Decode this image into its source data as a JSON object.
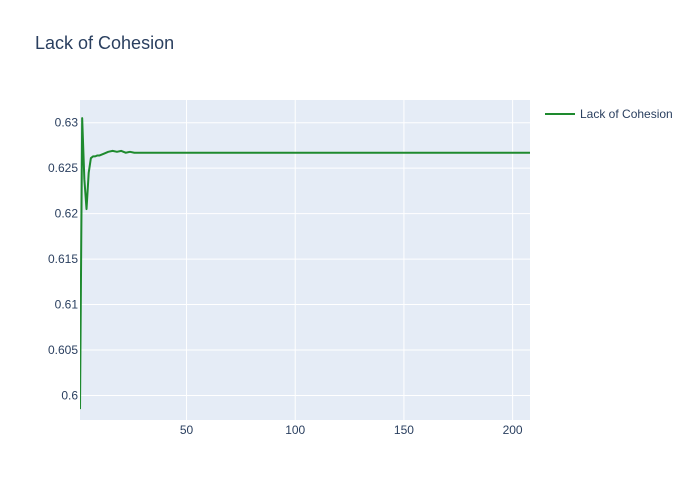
{
  "chart_data": {
    "type": "line",
    "title": "Lack of Cohesion",
    "xlabel": "",
    "ylabel": "",
    "xlim": [
      1,
      208
    ],
    "ylim": [
      0.5973,
      0.6325
    ],
    "xticks": [
      50,
      100,
      150,
      200
    ],
    "yticks": [
      0.6,
      0.605,
      0.61,
      0.615,
      0.62,
      0.625,
      0.63
    ],
    "x_tick_labels": [
      "50",
      "100",
      "150",
      "200"
    ],
    "y_tick_labels": [
      "0.6",
      "0.605",
      "0.61",
      "0.615",
      "0.62",
      "0.625",
      "0.63"
    ],
    "grid": true,
    "legend_position": "top-right",
    "series": [
      {
        "name": "Lack of Cohesion",
        "color": "#1e8a2e",
        "x": [
          1,
          2,
          3,
          4,
          5,
          6,
          7,
          8,
          9,
          10,
          12,
          14,
          16,
          18,
          20,
          22,
          24,
          26,
          28,
          30,
          50,
          100,
          150,
          200,
          208
        ],
        "y": [
          0.5985,
          0.6305,
          0.6238,
          0.6205,
          0.6245,
          0.6261,
          0.6263,
          0.6263,
          0.6264,
          0.6264,
          0.6266,
          0.6268,
          0.6269,
          0.6268,
          0.6269,
          0.6267,
          0.6268,
          0.6267,
          0.6267,
          0.6267,
          0.6267,
          0.6267,
          0.6267,
          0.6267,
          0.6267
        ]
      }
    ]
  }
}
